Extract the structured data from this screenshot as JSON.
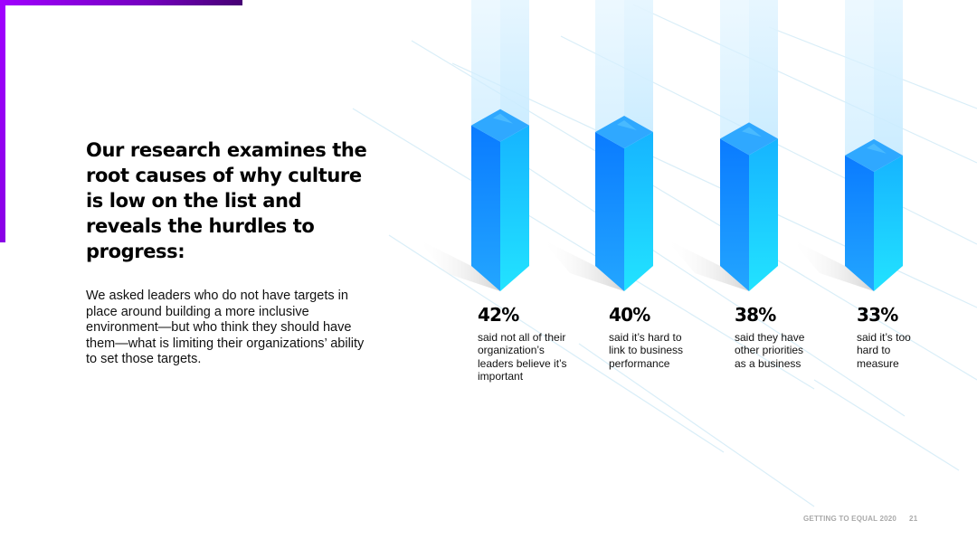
{
  "heading": "Our research examines the root causes of why culture is low on the list and reveals the hurdles to progress:",
  "body": "We asked leaders who do not have targets in place around building a more inclusive environment—but who think they should have them—what is limiting their organizations’ ability to set those targets.",
  "chart_data": {
    "type": "bar",
    "categories": [
      "said not all of their organization’s leaders believe it’s important",
      "said it’s hard to link to business performance",
      "said they have other priorities as a business",
      "said it’s too hard to measure"
    ],
    "values": [
      42,
      40,
      38,
      33
    ],
    "value_labels": [
      "42%",
      "40%",
      "38%",
      "33%"
    ],
    "captions": [
      "said not all of their\norganization’s\nleaders believe it’s\nimportant",
      "said it’s hard to\nlink to business\nperformance",
      "said they have\nother priorities\nas a business",
      "said it’s too\nhard to\nmeasure"
    ],
    "unit": "%",
    "grid": false,
    "legend": "none",
    "colors": {
      "bar_front": "#1a8cff",
      "bar_side": "#1ec8ff",
      "bar_top": "#3db8ff",
      "ghost": "#cfeeff"
    }
  },
  "footer": {
    "title": "GETTING TO EQUAL 2020",
    "page": "21"
  },
  "colors": {
    "accent": "#a100ff"
  }
}
